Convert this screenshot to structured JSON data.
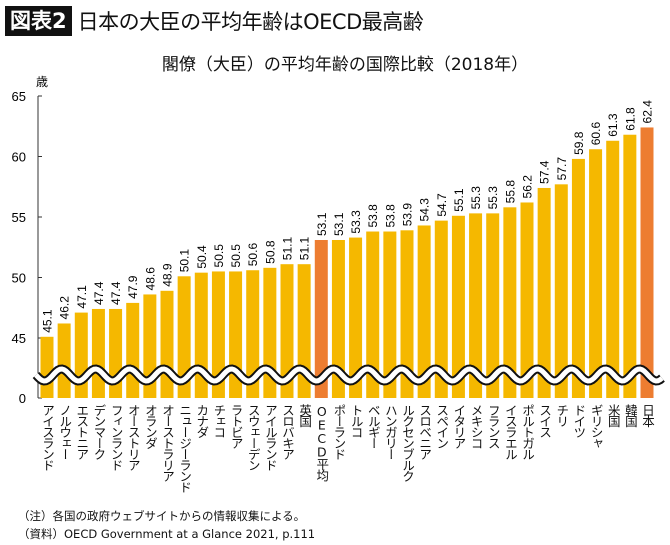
{
  "header": {
    "badge": "図表2",
    "title": "日本の大臣の平均年齢はOECD最高齢"
  },
  "chart_data": {
    "type": "bar",
    "title": "閣僚（大臣）の平均年齢の国際比較（2018年）",
    "ylabel": "歳",
    "ylim": [
      0,
      65
    ],
    "axis_break": [
      0,
      45
    ],
    "yticks": [
      0,
      45,
      50,
      55,
      60,
      65
    ],
    "grid": false,
    "colors": {
      "default": "#f5b800",
      "highlight": "#ed7d31"
    },
    "highlight": [
      "OECD平均",
      "日本"
    ],
    "categories": [
      "アイスランド",
      "ノルウェー",
      "エストニア",
      "デンマーク",
      "フィンランド",
      "オーストリア",
      "オランダ",
      "オーストラリア",
      "ニュージーランド",
      "カナダ",
      "チェコ",
      "ラトビア",
      "スウェーデン",
      "アイルランド",
      "スロバキア",
      "英国",
      "OECD平均",
      "ポーランド",
      "トルコ",
      "ベルギー",
      "ハンガリー",
      "ルクセンブルク",
      "スロベニア",
      "スペイン",
      "イタリア",
      "メキシコ",
      "フランス",
      "イスラエル",
      "ポルトガル",
      "スイス",
      "チリ",
      "ドイツ",
      "ギリシャ",
      "米国",
      "韓国",
      "日本"
    ],
    "values": [
      45.1,
      46.2,
      47.1,
      47.4,
      47.4,
      47.9,
      48.6,
      48.9,
      50.1,
      50.4,
      50.5,
      50.5,
      50.6,
      50.8,
      51.1,
      51.1,
      53.1,
      53.1,
      53.3,
      53.8,
      53.8,
      53.9,
      54.3,
      54.7,
      55.1,
      55.3,
      55.3,
      55.8,
      56.2,
      57.4,
      57.7,
      59.8,
      60.6,
      61.3,
      61.8,
      62.4
    ]
  },
  "notes": {
    "note": "（注）各国の政府ウェブサイトからの情報収集による。",
    "source": "（資料）OECD Government at a Glance 2021, p.111"
  }
}
